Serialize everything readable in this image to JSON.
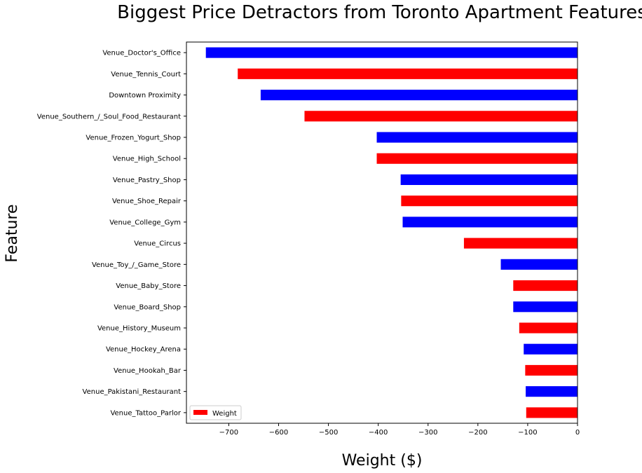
{
  "chart_data": {
    "type": "bar",
    "orientation": "horizontal",
    "title": "Biggest Price Detractors from Toronto Apartment Features",
    "xlabel": "Weight ($)",
    "ylabel": "Feature",
    "xlim": [
      -785,
      0
    ],
    "xticks": [
      "−700",
      "−600",
      "−500",
      "−400",
      "−300",
      "−200",
      "−100",
      "0"
    ],
    "xtick_values": [
      -700,
      -600,
      -500,
      -400,
      -300,
      -200,
      -100,
      0
    ],
    "grid": false,
    "legend": {
      "position": "lower left",
      "entries": [
        "Weight"
      ]
    },
    "series": [
      {
        "name": "Weight",
        "bar_colors": [
          "#0000ff",
          "#ff0000"
        ]
      }
    ],
    "categories": [
      "Venue_Doctor's_Office",
      "Venue_Tennis_Court",
      "Downtown Proximity",
      "Venue_Southern_/_Soul_Food_Restaurant",
      "Venue_Frozen_Yogurt_Shop",
      "Venue_High_School",
      "Venue_Pastry_Shop",
      "Venue_Shoe_Repair",
      "Venue_College_Gym",
      "Venue_Circus",
      "Venue_Toy_/_Game_Store",
      "Venue_Baby_Store",
      "Venue_Board_Shop",
      "Venue_History_Museum",
      "Venue_Hockey_Arena",
      "Venue_Hookah_Bar",
      "Venue_Pakistani_Restaurant",
      "Venue_Tattoo_Parlor"
    ],
    "values": [
      -746,
      -682,
      -636,
      -548,
      -403,
      -403,
      -355,
      -354,
      -351,
      -228,
      -154,
      -129,
      -129,
      -117,
      -108,
      -105,
      -104,
      -103
    ]
  }
}
